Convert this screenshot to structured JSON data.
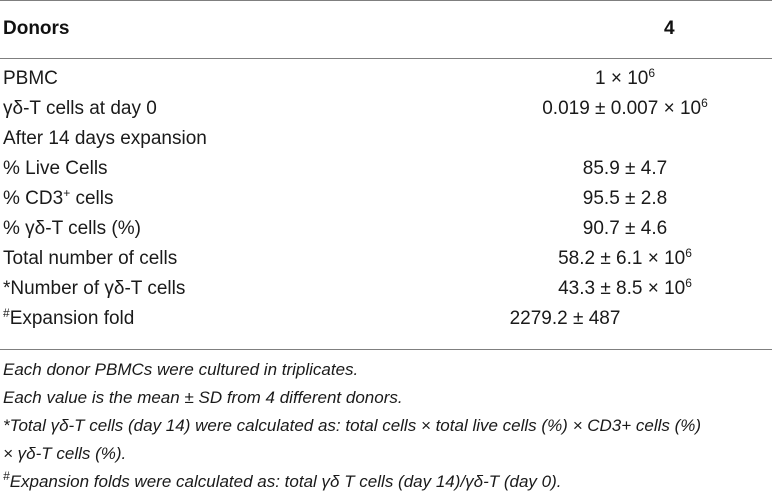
{
  "header": {
    "label": "Donors",
    "value": "4"
  },
  "rows": [
    {
      "label_pre": "PBMC",
      "label_sup": "",
      "label_post": "",
      "value_pre": "1 × 10",
      "value_sup": "6"
    },
    {
      "label_pre": "γδ-T cells at day 0",
      "label_sup": "",
      "label_post": "",
      "value_pre": "0.019 ± 0.007 × 10",
      "value_sup": "6"
    },
    {
      "label_pre": "After 14 days expansion",
      "label_sup": "",
      "label_post": "",
      "value_pre": "",
      "value_sup": ""
    },
    {
      "label_pre": "% Live Cells",
      "label_sup": "",
      "label_post": "",
      "value_pre": "85.9 ± 4.7",
      "value_sup": ""
    },
    {
      "label_pre": "% CD3",
      "label_sup": "+",
      "label_post": " cells",
      "value_pre": "95.5 ± 2.8",
      "value_sup": ""
    },
    {
      "label_pre": "% γδ-T cells (%)",
      "label_sup": "",
      "label_post": "",
      "value_pre": "90.7 ± 4.6",
      "value_sup": ""
    },
    {
      "label_pre": "Total number of cells",
      "label_sup": "",
      "label_post": "",
      "value_pre": "58.2 ± 6.1 × 10",
      "value_sup": "6"
    },
    {
      "label_pre": "*Number of γδ-T cells",
      "label_sup": "",
      "label_post": "",
      "value_pre": "43.3 ± 8.5 × 10",
      "value_sup": "6"
    },
    {
      "label_pre": "",
      "label_sup": "#",
      "label_post": "Expansion fold",
      "value_pre": "2279.2 ± 487",
      "value_sup": ""
    }
  ],
  "notes": {
    "line1": "Each donor PBMCs were cultured in triplicates.",
    "line2": "Each value is the mean ± SD from 4 different donors.",
    "line3": "*Total γδ-T cells (day 14) were calculated as: total cells × total live cells (%) × CD3+ cells (%)",
    "line4": "× γδ-T cells (%).",
    "line5_sup": "#",
    "line5": "Expansion folds were calculated as: total γδ T cells (day 14)/γδ-T (day 0)."
  }
}
